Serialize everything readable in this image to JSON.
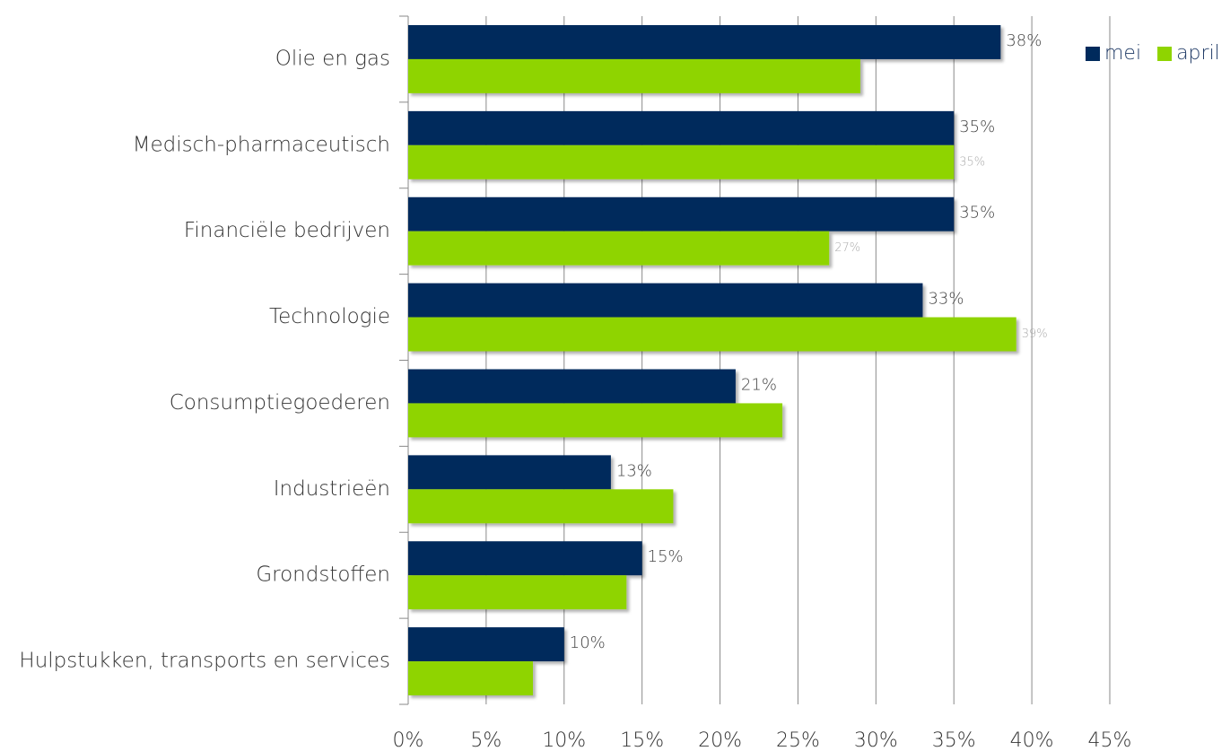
{
  "chart_data": {
    "type": "bar",
    "categories": [
      "Olie en gas",
      "Medisch-pharmaceutisch",
      "Financiële bedrijven",
      "Technologie",
      "Consumptiegoederen",
      "Industrieën",
      "Grondstoffen",
      "Hulpstukken, transports en services"
    ],
    "series": [
      {
        "name": "mei",
        "color": "#002a5c",
        "values": [
          38,
          35,
          35,
          33,
          21,
          13,
          15,
          10
        ],
        "value_labels": [
          "38%",
          "35%",
          "35%",
          "33%",
          "21%",
          "13%",
          "15%",
          "10%"
        ]
      },
      {
        "name": "april",
        "color": "#8fd400",
        "values": [
          29,
          35,
          27,
          39,
          24,
          17,
          14,
          8
        ],
        "value_labels": [
          null,
          "35%",
          "27%",
          "39%",
          null,
          null,
          null,
          null
        ]
      }
    ],
    "xlim": [
      0,
      45
    ],
    "xticks": [
      {
        "value": 0,
        "label": "0%"
      },
      {
        "value": 5,
        "label": "5%"
      },
      {
        "value": 10,
        "label": "10%"
      },
      {
        "value": 15,
        "label": "15%"
      },
      {
        "value": 20,
        "label": "20%"
      },
      {
        "value": 25,
        "label": "25%"
      },
      {
        "value": 30,
        "label": "30%"
      },
      {
        "value": 35,
        "label": "35%"
      },
      {
        "value": 40,
        "label": "40%"
      },
      {
        "value": 45,
        "label": "45%"
      }
    ],
    "grid": true,
    "legend": "upper right"
  }
}
